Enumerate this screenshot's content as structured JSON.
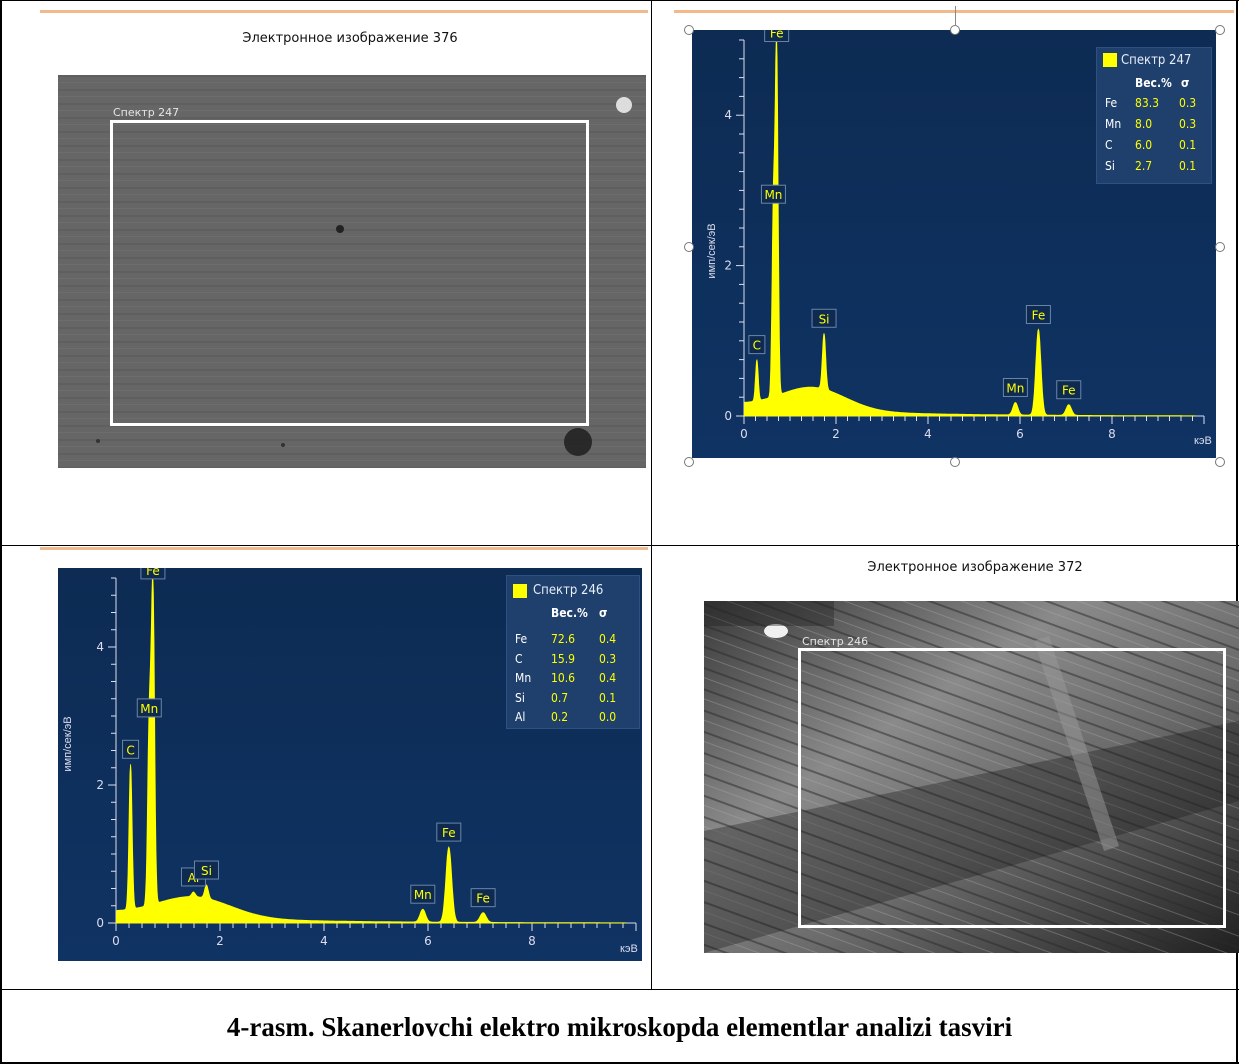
{
  "sem_top": {
    "title": "Электронное изображение 376",
    "roi_label": "Спектр 247"
  },
  "sem_bottom": {
    "title": "Электронное изображение 372",
    "roi_label": "Спектр 246"
  },
  "caption": "4-rasm. Skanerlovchi elektro mikroskopda elementlar analizi tasviri",
  "spectrum_top": {
    "legend_title": "Спектр 247",
    "col_wt": "Вес.%",
    "col_sigma": "σ",
    "rows": [
      {
        "el": "Fe",
        "wt": "83.3",
        "sigma": "0.3"
      },
      {
        "el": "Mn",
        "wt": "8.0",
        "sigma": "0.3"
      },
      {
        "el": "C",
        "wt": "6.0",
        "sigma": "0.1"
      },
      {
        "el": "Si",
        "wt": "2.7",
        "sigma": "0.1"
      }
    ]
  },
  "spectrum_bottom": {
    "legend_title": "Спектр 246",
    "col_wt": "Вес.%",
    "col_sigma": "σ",
    "rows": [
      {
        "el": "Fe",
        "wt": "72.6",
        "sigma": "0.4"
      },
      {
        "el": "C",
        "wt": "15.9",
        "sigma": "0.3"
      },
      {
        "el": "Mn",
        "wt": "10.6",
        "sigma": "0.4"
      },
      {
        "el": "Si",
        "wt": "0.7",
        "sigma": "0.1"
      },
      {
        "el": "Al",
        "wt": "0.2",
        "sigma": "0.0"
      }
    ]
  },
  "chart_data": [
    {
      "type": "line",
      "title": "",
      "xlabel": "кэВ",
      "ylabel": "имп/сек/эВ",
      "xlim": [
        0,
        10
      ],
      "ylim": [
        0,
        5
      ],
      "xticks": [
        "0",
        "2",
        "4",
        "6",
        "8"
      ],
      "yticks": [
        "0",
        "2",
        "4"
      ],
      "series": [
        {
          "name": "Спектр 247",
          "color": "#ffff00"
        }
      ],
      "peaks": [
        {
          "label": "C",
          "x": 0.28,
          "y": 0.75
        },
        {
          "label": "Fe",
          "x": 0.71,
          "y": 4.9
        },
        {
          "label": "Mn",
          "x": 0.64,
          "y": 2.75
        },
        {
          "label": "Si",
          "x": 1.74,
          "y": 1.1
        },
        {
          "label": "Mn",
          "x": 5.9,
          "y": 0.18
        },
        {
          "label": "Fe",
          "x": 6.4,
          "y": 1.15
        },
        {
          "label": "Fe",
          "x": 7.06,
          "y": 0.15
        }
      ]
    },
    {
      "type": "line",
      "title": "",
      "xlabel": "кэВ",
      "ylabel": "имп/сек/эВ",
      "xlim": [
        0,
        10
      ],
      "ylim": [
        0,
        5
      ],
      "xticks": [
        "0",
        "2",
        "4",
        "6",
        "8"
      ],
      "yticks": [
        "0",
        "2",
        "4"
      ],
      "series": [
        {
          "name": "Спектр 246",
          "color": "#ffff00"
        }
      ],
      "peaks": [
        {
          "label": "C",
          "x": 0.28,
          "y": 2.3
        },
        {
          "label": "Fe",
          "x": 0.71,
          "y": 4.9
        },
        {
          "label": "Mn",
          "x": 0.64,
          "y": 2.9
        },
        {
          "label": "Al",
          "x": 1.49,
          "y": 0.45
        },
        {
          "label": "Si",
          "x": 1.74,
          "y": 0.55
        },
        {
          "label": "Mn",
          "x": 5.9,
          "y": 0.2
        },
        {
          "label": "Fe",
          "x": 6.4,
          "y": 1.1
        },
        {
          "label": "Fe",
          "x": 7.06,
          "y": 0.15
        }
      ]
    }
  ]
}
